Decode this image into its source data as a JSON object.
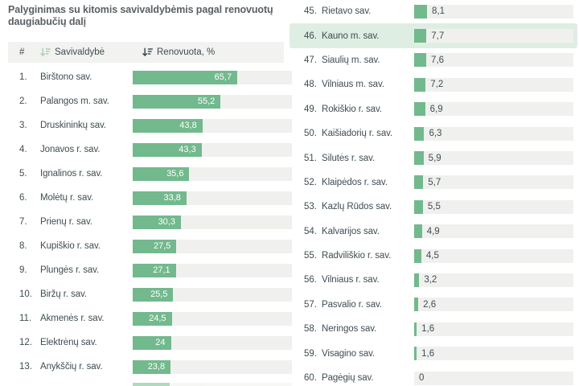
{
  "title": "Palyginimas su kitomis savivaldybėmis pagal renovuotų daugiabučių dalį",
  "header": {
    "rank_label": "#",
    "name_label": "Savivaldybė",
    "value_label": "Renovuota, %",
    "name_sort_icon": "sort-descending-icon",
    "value_sort_icon": "sort-descending-icon-active"
  },
  "left_rows": [
    {
      "rank": "1.",
      "name": "Birštono sav.",
      "value": 65.7,
      "display": "65,7"
    },
    {
      "rank": "2.",
      "name": "Palangos m. sav.",
      "value": 55.2,
      "display": "55,2"
    },
    {
      "rank": "3.",
      "name": "Druskininkų sav.",
      "value": 43.8,
      "display": "43,8"
    },
    {
      "rank": "4.",
      "name": "Jonavos r. sav.",
      "value": 43.3,
      "display": "43,3"
    },
    {
      "rank": "5.",
      "name": "Ignalinos r. sav.",
      "value": 35.6,
      "display": "35,6"
    },
    {
      "rank": "6.",
      "name": "Molėtų r. sav.",
      "value": 33.8,
      "display": "33,8"
    },
    {
      "rank": "7.",
      "name": "Prienų r. sav.",
      "value": 30.3,
      "display": "30,3"
    },
    {
      "rank": "8.",
      "name": "Kupiškio r. sav.",
      "value": 27.5,
      "display": "27,5"
    },
    {
      "rank": "9.",
      "name": "Plungės r. sav.",
      "value": 27.1,
      "display": "27,1"
    },
    {
      "rank": "10.",
      "name": "Biržų r. sav.",
      "value": 25.5,
      "display": "25,5"
    },
    {
      "rank": "11.",
      "name": "Akmenės r. sav.",
      "value": 24.5,
      "display": "24,5"
    },
    {
      "rank": "12.",
      "name": "Elektrėnų sav.",
      "value": 24,
      "display": "24"
    },
    {
      "rank": "13.",
      "name": "Anykščių r. sav.",
      "value": 23.8,
      "display": "23,8"
    }
  ],
  "right_rows": [
    {
      "rank": "45.",
      "name": "Rietavo sav.",
      "value": 8.1,
      "display": "8,1"
    },
    {
      "rank": "46.",
      "name": "Kauno m. sav.",
      "value": 7.7,
      "display": "7,7",
      "highlight": true
    },
    {
      "rank": "47.",
      "name": "Šiaulių m. sav.",
      "value": 7.6,
      "display": "7,6"
    },
    {
      "rank": "48.",
      "name": "Vilniaus m. sav.",
      "value": 7.2,
      "display": "7,2"
    },
    {
      "rank": "49.",
      "name": "Rokiškio r. sav.",
      "value": 6.9,
      "display": "6,9"
    },
    {
      "rank": "50.",
      "name": "Kaišiadorių r. sav.",
      "value": 6.3,
      "display": "6,3"
    },
    {
      "rank": "51.",
      "name": "Šilutės r. sav.",
      "value": 5.9,
      "display": "5,9"
    },
    {
      "rank": "52.",
      "name": "Klaipėdos r. sav.",
      "value": 5.7,
      "display": "5,7"
    },
    {
      "rank": "53.",
      "name": "Kazlų Rūdos sav.",
      "value": 5.5,
      "display": "5,5"
    },
    {
      "rank": "54.",
      "name": "Kalvarijos sav.",
      "value": 4.9,
      "display": "4,9"
    },
    {
      "rank": "55.",
      "name": "Radviliškio r. sav.",
      "value": 4.5,
      "display": "4,5"
    },
    {
      "rank": "56.",
      "name": "Vilniaus r. sav.",
      "value": 3.2,
      "display": "3,2"
    },
    {
      "rank": "57.",
      "name": "Pasvalio r. sav.",
      "value": 2.6,
      "display": "2,6"
    },
    {
      "rank": "58.",
      "name": "Neringos sav.",
      "value": 1.6,
      "display": "1,6"
    },
    {
      "rank": "59.",
      "name": "Visagino sav.",
      "value": 1.6,
      "display": "1,6"
    },
    {
      "rank": "60.",
      "name": "Pagėgių sav.",
      "value": 0,
      "display": "0"
    }
  ],
  "colors": {
    "bar": "#72b98d",
    "track": "#f0f1ee",
    "highlight": "#dfeee3",
    "header_bg": "#f2f2f0",
    "text": "#3e4d52",
    "title": "#5a6064",
    "icon_light": "#a6d0b3",
    "icon_dark": "#3e4d52"
  },
  "chart_data": {
    "type": "bar",
    "orientation": "horizontal",
    "title": "Palyginimas su kitomis savivaldybėmis pagal renovuotų daugiabučių dalį",
    "value_label": "Renovuota, %",
    "value_range": [
      0,
      100
    ],
    "sorted": "descending",
    "highlighted_category": "Kauno m. sav.",
    "ranks": [
      1,
      2,
      3,
      4,
      5,
      6,
      7,
      8,
      9,
      10,
      11,
      12,
      13,
      45,
      46,
      47,
      48,
      49,
      50,
      51,
      52,
      53,
      54,
      55,
      56,
      57,
      58,
      59,
      60
    ],
    "categories": [
      "Birštono sav.",
      "Palangos m. sav.",
      "Druskininkų sav.",
      "Jonavos r. sav.",
      "Ignalinos r. sav.",
      "Molėtų r. sav.",
      "Prienų r. sav.",
      "Kupiškio r. sav.",
      "Plungės r. sav.",
      "Biržų r. sav.",
      "Akmenės r. sav.",
      "Elektrėnų sav.",
      "Anykščių r. sav.",
      "Rietavo sav.",
      "Kauno m. sav.",
      "Šiaulių m. sav.",
      "Vilniaus m. sav.",
      "Rokiškio r. sav.",
      "Kaišiadorių r. sav.",
      "Šilutės r. sav.",
      "Klaipėdos r. sav.",
      "Kazlų Rūdos sav.",
      "Kalvarijos sav.",
      "Radviliškio r. sav.",
      "Vilniaus r. sav.",
      "Pasvalio r. sav.",
      "Neringos sav.",
      "Visagino sav.",
      "Pagėgių sav."
    ],
    "values": [
      65.7,
      55.2,
      43.8,
      43.3,
      35.6,
      33.8,
      30.3,
      27.5,
      27.1,
      25.5,
      24.5,
      24,
      23.8,
      8.1,
      7.7,
      7.6,
      7.2,
      6.9,
      6.3,
      5.9,
      5.7,
      5.5,
      4.9,
      4.5,
      3.2,
      2.6,
      1.6,
      1.6,
      0
    ]
  }
}
